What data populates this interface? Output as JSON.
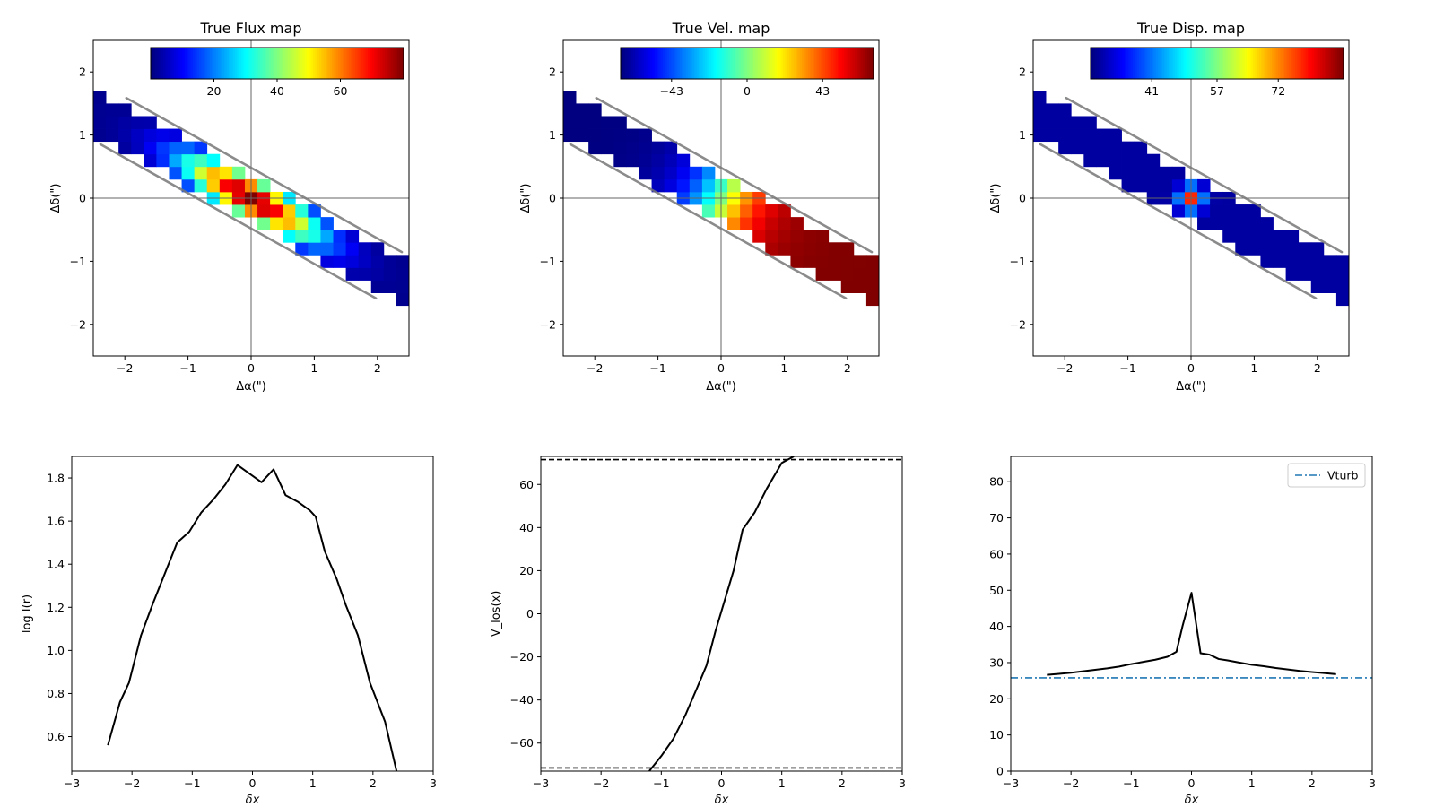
{
  "chart_data": [
    {
      "type": "heatmap",
      "title": "True Flux map",
      "xlabel": "Δα(\")",
      "ylabel": "Δδ(\")",
      "xlim": [
        -2.5,
        2.5
      ],
      "ylim": [
        -2.5,
        2.5
      ],
      "xticks": [
        "−2",
        "−1",
        "0",
        "1",
        "2"
      ],
      "yticks": [
        "−2",
        "−1",
        "0",
        "1",
        "2"
      ],
      "colormap": "jet",
      "colorbar": {
        "min": 0,
        "max": 80,
        "ticks": [
          "20",
          "40",
          "60"
        ],
        "location": "top-inset"
      },
      "pixel_size": 0.2,
      "field": "flux",
      "grid": false
    },
    {
      "type": "heatmap",
      "title": "True Vel. map",
      "xlabel": "Δα(\")",
      "ylabel": "Δδ(\")",
      "xlim": [
        -2.5,
        2.5
      ],
      "ylim": [
        -2.5,
        2.5
      ],
      "xticks": [
        "−2",
        "−1",
        "0",
        "1",
        "2"
      ],
      "yticks": [
        "−2",
        "−1",
        "0",
        "1",
        "2"
      ],
      "colormap": "jet",
      "colorbar": {
        "min": -72,
        "max": 72,
        "ticks": [
          "−43",
          "0",
          "43"
        ],
        "location": "top-inset"
      },
      "pixel_size": 0.2,
      "field": "velocity",
      "grid": false
    },
    {
      "type": "heatmap",
      "title": "True Disp. map",
      "xlabel": "Δα(\")",
      "ylabel": "Δδ(\")",
      "xlim": [
        -2.5,
        2.5
      ],
      "ylim": [
        -2.5,
        2.5
      ],
      "xticks": [
        "−2",
        "−1",
        "0",
        "1",
        "2"
      ],
      "yticks": [
        "−2",
        "−1",
        "0",
        "1",
        "2"
      ],
      "colormap": "jet",
      "colorbar": {
        "min": 26,
        "max": 88,
        "ticks": [
          "41",
          "57",
          "72"
        ],
        "location": "top-inset"
      },
      "pixel_size": 0.2,
      "field": "dispersion",
      "grid": false
    },
    {
      "type": "line",
      "title": "",
      "xlabel": "δx",
      "ylabel": "log I(r)",
      "xlim": [
        -3,
        3
      ],
      "ylim": [
        0.44,
        1.9
      ],
      "xticks": [
        "−3",
        "−2",
        "−1",
        "0",
        "1",
        "2",
        "3"
      ],
      "yticks": [
        "0.6",
        "0.8",
        "1.0",
        "1.2",
        "1.4",
        "1.6",
        "1.8"
      ],
      "series": [
        {
          "color": "#000000",
          "x": [
            -2.4,
            -2.2,
            -2.05,
            -1.85,
            -1.65,
            -1.45,
            -1.25,
            -1.05,
            -0.85,
            -0.65,
            -0.45,
            -0.25,
            -0.05,
            0.15,
            0.35,
            0.55,
            0.75,
            0.95,
            1.05,
            1.2,
            1.4,
            1.55,
            1.75,
            1.95,
            2.2,
            2.4
          ],
          "y": [
            0.56,
            0.76,
            0.85,
            1.07,
            1.22,
            1.36,
            1.5,
            1.55,
            1.64,
            1.7,
            1.77,
            1.86,
            1.82,
            1.78,
            1.84,
            1.72,
            1.69,
            1.65,
            1.62,
            1.46,
            1.33,
            1.21,
            1.07,
            0.85,
            0.67,
            0.43
          ]
        }
      ]
    },
    {
      "type": "line",
      "title": "",
      "xlabel": "δx",
      "ylabel": "V_los(x)",
      "xlim": [
        -3,
        3
      ],
      "ylim": [
        -73,
        73
      ],
      "xticks": [
        "−3",
        "−2",
        "−1",
        "0",
        "1",
        "2",
        "3"
      ],
      "yticks": [
        "−60",
        "−40",
        "−20",
        "0",
        "20",
        "40",
        "60"
      ],
      "hlines": [
        71.5,
        -71.5
      ],
      "series": [
        {
          "color": "#000000",
          "x": [
            -1.2,
            -1.0,
            -0.8,
            -0.6,
            -0.4,
            -0.25,
            -0.1,
            0.05,
            0.2,
            0.35,
            0.55,
            0.75,
            1.0,
            1.2
          ],
          "y": [
            -73,
            -66,
            -58,
            -47,
            -34,
            -24,
            -8,
            6,
            20,
            39,
            47,
            58,
            70,
            73
          ]
        }
      ]
    },
    {
      "type": "line",
      "title": "",
      "xlabel": "δx",
      "ylabel": "",
      "xlim": [
        -3,
        3
      ],
      "ylim": [
        0,
        87
      ],
      "xticks": [
        "−3",
        "−2",
        "−1",
        "0",
        "1",
        "2",
        "3"
      ],
      "yticks": [
        "0",
        "10",
        "20",
        "30",
        "40",
        "50",
        "60",
        "70",
        "80"
      ],
      "legend": {
        "position": "top-right",
        "entries": [
          "Vturb"
        ]
      },
      "series": [
        {
          "color": "#000000",
          "x": [
            -2.4,
            -2.2,
            -2.0,
            -1.8,
            -1.6,
            -1.4,
            -1.2,
            -1.0,
            -0.8,
            -0.6,
            -0.4,
            -0.25,
            -0.15,
            0.0,
            0.15,
            0.3,
            0.45,
            0.6,
            0.8,
            1.0,
            1.2,
            1.4,
            1.6,
            1.8,
            2.0,
            2.2,
            2.4
          ],
          "y": [
            26.6,
            26.9,
            27.2,
            27.6,
            28.0,
            28.4,
            28.9,
            29.6,
            30.2,
            30.8,
            31.6,
            33.0,
            40.0,
            49.3,
            32.6,
            32.2,
            31.0,
            30.6,
            30.0,
            29.4,
            29.0,
            28.5,
            28.1,
            27.7,
            27.4,
            27.1,
            26.8
          ]
        },
        {
          "name": "Vturb",
          "color": "#1f77b4",
          "dash": "dashdot",
          "x": [
            -3,
            3
          ],
          "y": [
            25.8,
            25.8
          ]
        }
      ]
    }
  ]
}
